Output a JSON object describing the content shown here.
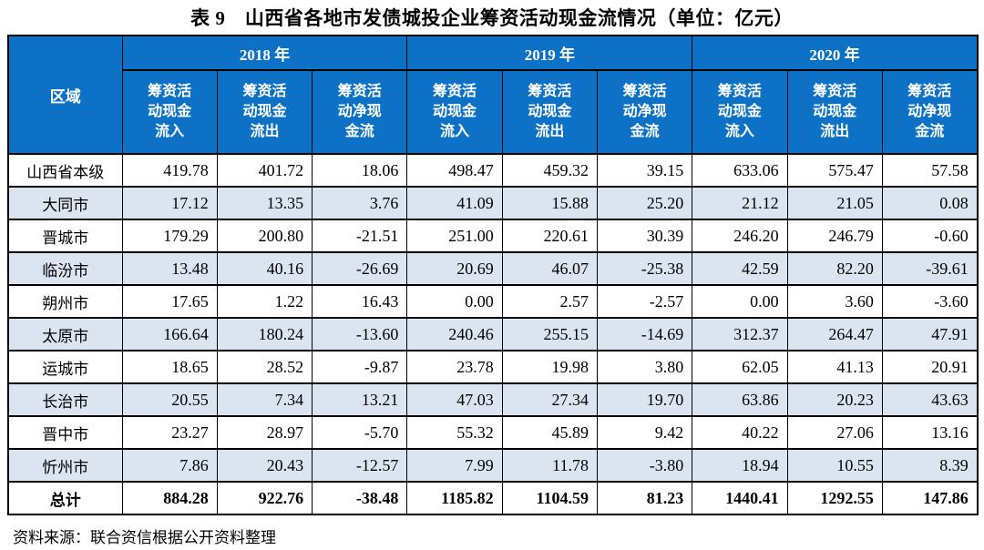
{
  "colors": {
    "header_bg": "#0D72C6",
    "stripe_bg": "#DBE5F1",
    "header_text": "#FFFFFF",
    "border": "#000000",
    "text": "#000000",
    "page_bg": "#FFFFFF"
  },
  "title": "表 9　山西省各地市发债城投企业筹资活动现金流情况（单位：亿元）",
  "source_note": "资料来源：联合资信根据公开资料整理",
  "table": {
    "region_header": "区域",
    "year_groups": [
      "2018 年",
      "2019 年",
      "2020 年"
    ],
    "subheaders": [
      "筹资活\n动现金\n流入",
      "筹资活\n动现金\n流出",
      "筹资活\n动净现\n金流"
    ],
    "rows": [
      {
        "region": "山西省本级",
        "values": [
          "419.78",
          "401.72",
          "18.06",
          "498.47",
          "459.32",
          "39.15",
          "633.06",
          "575.47",
          "57.58"
        ]
      },
      {
        "region": "大同市",
        "values": [
          "17.12",
          "13.35",
          "3.76",
          "41.09",
          "15.88",
          "25.20",
          "21.12",
          "21.05",
          "0.08"
        ]
      },
      {
        "region": "晋城市",
        "values": [
          "179.29",
          "200.80",
          "-21.51",
          "251.00",
          "220.61",
          "30.39",
          "246.20",
          "246.79",
          "-0.60"
        ]
      },
      {
        "region": "临汾市",
        "values": [
          "13.48",
          "40.16",
          "-26.69",
          "20.69",
          "46.07",
          "-25.38",
          "42.59",
          "82.20",
          "-39.61"
        ]
      },
      {
        "region": "朔州市",
        "values": [
          "17.65",
          "1.22",
          "16.43",
          "0.00",
          "2.57",
          "-2.57",
          "0.00",
          "3.60",
          "-3.60"
        ]
      },
      {
        "region": "太原市",
        "values": [
          "166.64",
          "180.24",
          "-13.60",
          "240.46",
          "255.15",
          "-14.69",
          "312.37",
          "264.47",
          "47.91"
        ]
      },
      {
        "region": "运城市",
        "values": [
          "18.65",
          "28.52",
          "-9.87",
          "23.78",
          "19.98",
          "3.80",
          "62.05",
          "41.13",
          "20.91"
        ]
      },
      {
        "region": "长治市",
        "values": [
          "20.55",
          "7.34",
          "13.21",
          "47.03",
          "27.34",
          "19.70",
          "63.86",
          "20.23",
          "43.63"
        ]
      },
      {
        "region": "晋中市",
        "values": [
          "23.27",
          "28.97",
          "-5.70",
          "55.32",
          "45.89",
          "9.42",
          "40.22",
          "27.06",
          "13.16"
        ]
      },
      {
        "region": "忻州市",
        "values": [
          "7.86",
          "20.43",
          "-12.57",
          "7.99",
          "11.78",
          "-3.80",
          "18.94",
          "10.55",
          "8.39"
        ]
      }
    ],
    "total_row": {
      "region": "总计",
      "values": [
        "884.28",
        "922.76",
        "-38.48",
        "1185.82",
        "1104.59",
        "81.23",
        "1440.41",
        "1292.55",
        "147.86"
      ]
    }
  }
}
